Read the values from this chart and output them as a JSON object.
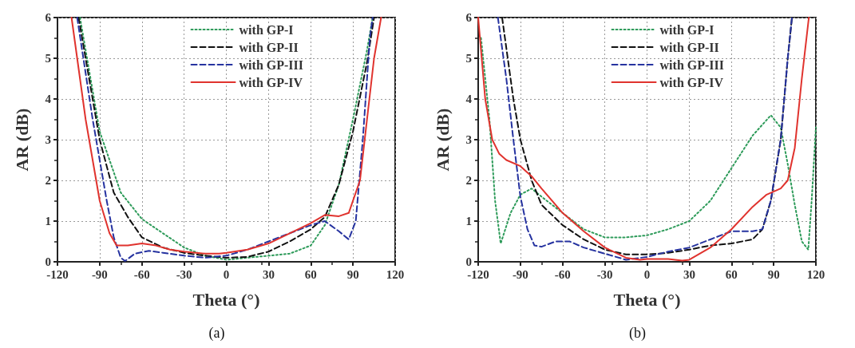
{
  "chart_data": [
    {
      "type": "line",
      "xlabel": "Theta (°)",
      "ylabel": "AR (dB)",
      "annotations": [
        "(a)"
      ],
      "xlim": [
        -120,
        120
      ],
      "xticks": [
        -120,
        -90,
        -60,
        -30,
        0,
        30,
        60,
        90,
        120
      ],
      "ylim": [
        0,
        6
      ],
      "yticks": [
        0,
        1,
        2,
        3,
        4,
        5,
        6
      ],
      "grid": true,
      "legend": "top right",
      "marker": "none",
      "series": [
        {
          "name": "with GP-I",
          "color": "#2e9b5a",
          "line_style": "dotted",
          "x": [
            -104,
            -90,
            -75,
            -60,
            -45,
            -30,
            -15,
            0,
            15,
            30,
            45,
            60,
            70,
            80,
            90,
            100,
            104
          ],
          "values": [
            6,
            3.2,
            1.7,
            1.05,
            0.7,
            0.35,
            0.15,
            0.05,
            0.1,
            0.15,
            0.2,
            0.4,
            0.9,
            1.9,
            3.5,
            5.2,
            6
          ]
        },
        {
          "name": "with GP-II",
          "color": "#111111",
          "line_style": "dashed",
          "x": [
            -105,
            -90,
            -80,
            -70,
            -60,
            -45,
            -30,
            -15,
            0,
            15,
            30,
            45,
            60,
            70,
            80,
            90,
            100,
            105
          ],
          "values": [
            6,
            3.0,
            1.7,
            1.1,
            0.6,
            0.35,
            0.22,
            0.15,
            0.1,
            0.12,
            0.25,
            0.5,
            0.8,
            1.1,
            1.9,
            3.2,
            4.9,
            6
          ]
        },
        {
          "name": "with GP-III",
          "color": "#2633a0",
          "line_style": "dashed",
          "x": [
            -106,
            -95,
            -85,
            -80,
            -75,
            -72,
            -65,
            -55,
            -45,
            -30,
            -15,
            0,
            15,
            30,
            45,
            60,
            70,
            80,
            87,
            92,
            97,
            102,
            104
          ],
          "values": [
            6,
            3.5,
            1.5,
            0.6,
            0.1,
            0.02,
            0.2,
            0.27,
            0.22,
            0.15,
            0.1,
            0.15,
            0.3,
            0.5,
            0.7,
            0.9,
            1.0,
            0.75,
            0.55,
            1.0,
            3,
            5.5,
            6
          ]
        },
        {
          "name": "with GP-IV",
          "color": "#e0332e",
          "line_style": "solid",
          "x": [
            -110,
            -100,
            -90,
            -83,
            -78,
            -70,
            -60,
            -50,
            -40,
            -30,
            -15,
            -5,
            0,
            15,
            30,
            45,
            60,
            70,
            80,
            87,
            95,
            100,
            105,
            110
          ],
          "values": [
            6,
            3.5,
            1.5,
            0.7,
            0.4,
            0.4,
            0.45,
            0.4,
            0.3,
            0.25,
            0.2,
            0.2,
            0.22,
            0.3,
            0.45,
            0.7,
            0.95,
            1.15,
            1.12,
            1.2,
            2.0,
            3.5,
            5.0,
            6
          ]
        }
      ]
    },
    {
      "type": "line",
      "xlabel": "Theta (°)",
      "ylabel": "AR (dB)",
      "annotations": [
        "(b)"
      ],
      "xlim": [
        -120,
        120
      ],
      "xticks": [
        -120,
        -90,
        -60,
        -30,
        0,
        30,
        60,
        90,
        120
      ],
      "ylim": [
        0,
        6
      ],
      "yticks": [
        0,
        1,
        2,
        3,
        4,
        5,
        6
      ],
      "grid": true,
      "legend": "top right",
      "marker": "none",
      "series": [
        {
          "name": "with GP-I",
          "color": "#2e9b5a",
          "line_style": "dotted",
          "x": [
            -118,
            -112,
            -108,
            -104,
            -97,
            -90,
            -82,
            -75,
            -60,
            -45,
            -30,
            -15,
            0,
            15,
            30,
            45,
            60,
            75,
            88,
            95,
            100,
            105,
            110,
            114.6,
            117,
            120
          ],
          "values": [
            5.5,
            3.5,
            1.5,
            0.45,
            1.2,
            1.65,
            1.8,
            1.6,
            1.2,
            0.8,
            0.6,
            0.6,
            0.65,
            0.8,
            1.0,
            1.5,
            2.3,
            3.1,
            3.6,
            3.3,
            2.4,
            1.4,
            0.5,
            0.3,
            1.5,
            3.3
          ]
        },
        {
          "name": "with GP-II",
          "color": "#111111",
          "line_style": "dashed",
          "x": [
            -103,
            -95,
            -90,
            -82,
            -75,
            -60,
            -45,
            -30,
            -15,
            0,
            15,
            30,
            45,
            60,
            75,
            82,
            88,
            95,
            100,
            103
          ],
          "values": [
            6,
            4,
            3.0,
            2.0,
            1.4,
            0.9,
            0.55,
            0.3,
            0.18,
            0.18,
            0.22,
            0.3,
            0.4,
            0.45,
            0.55,
            0.8,
            1.5,
            3,
            5,
            6
          ]
        },
        {
          "name": "with GP-III",
          "color": "#2633a0",
          "line_style": "dashed",
          "x": [
            -106,
            -100,
            -95,
            -90,
            -85,
            -80,
            -75,
            -65,
            -55,
            -45,
            -30,
            -15,
            0,
            15,
            30,
            45,
            60,
            75,
            82,
            88,
            95,
            100,
            103
          ],
          "values": [
            6,
            4.5,
            3.0,
            1.6,
            0.8,
            0.4,
            0.37,
            0.5,
            0.5,
            0.35,
            0.2,
            0.05,
            0.12,
            0.25,
            0.35,
            0.55,
            0.75,
            0.75,
            0.8,
            1.5,
            3,
            5,
            6
          ]
        },
        {
          "name": "with GP-IV",
          "color": "#e0332e",
          "line_style": "solid",
          "x": [
            -120,
            -115,
            -110,
            -105,
            -100,
            -90,
            -82,
            -75,
            -60,
            -45,
            -30,
            -15,
            -5,
            0,
            15,
            25,
            30,
            45,
            60,
            75,
            85,
            95,
            100,
            105,
            110,
            115
          ],
          "values": [
            6,
            4,
            3.0,
            2.65,
            2.5,
            2.35,
            2.1,
            1.8,
            1.2,
            0.75,
            0.35,
            0.1,
            0.05,
            0.07,
            0.07,
            0.03,
            0.05,
            0.35,
            0.8,
            1.35,
            1.65,
            1.8,
            2.0,
            2.8,
            4.5,
            6
          ]
        }
      ]
    }
  ]
}
